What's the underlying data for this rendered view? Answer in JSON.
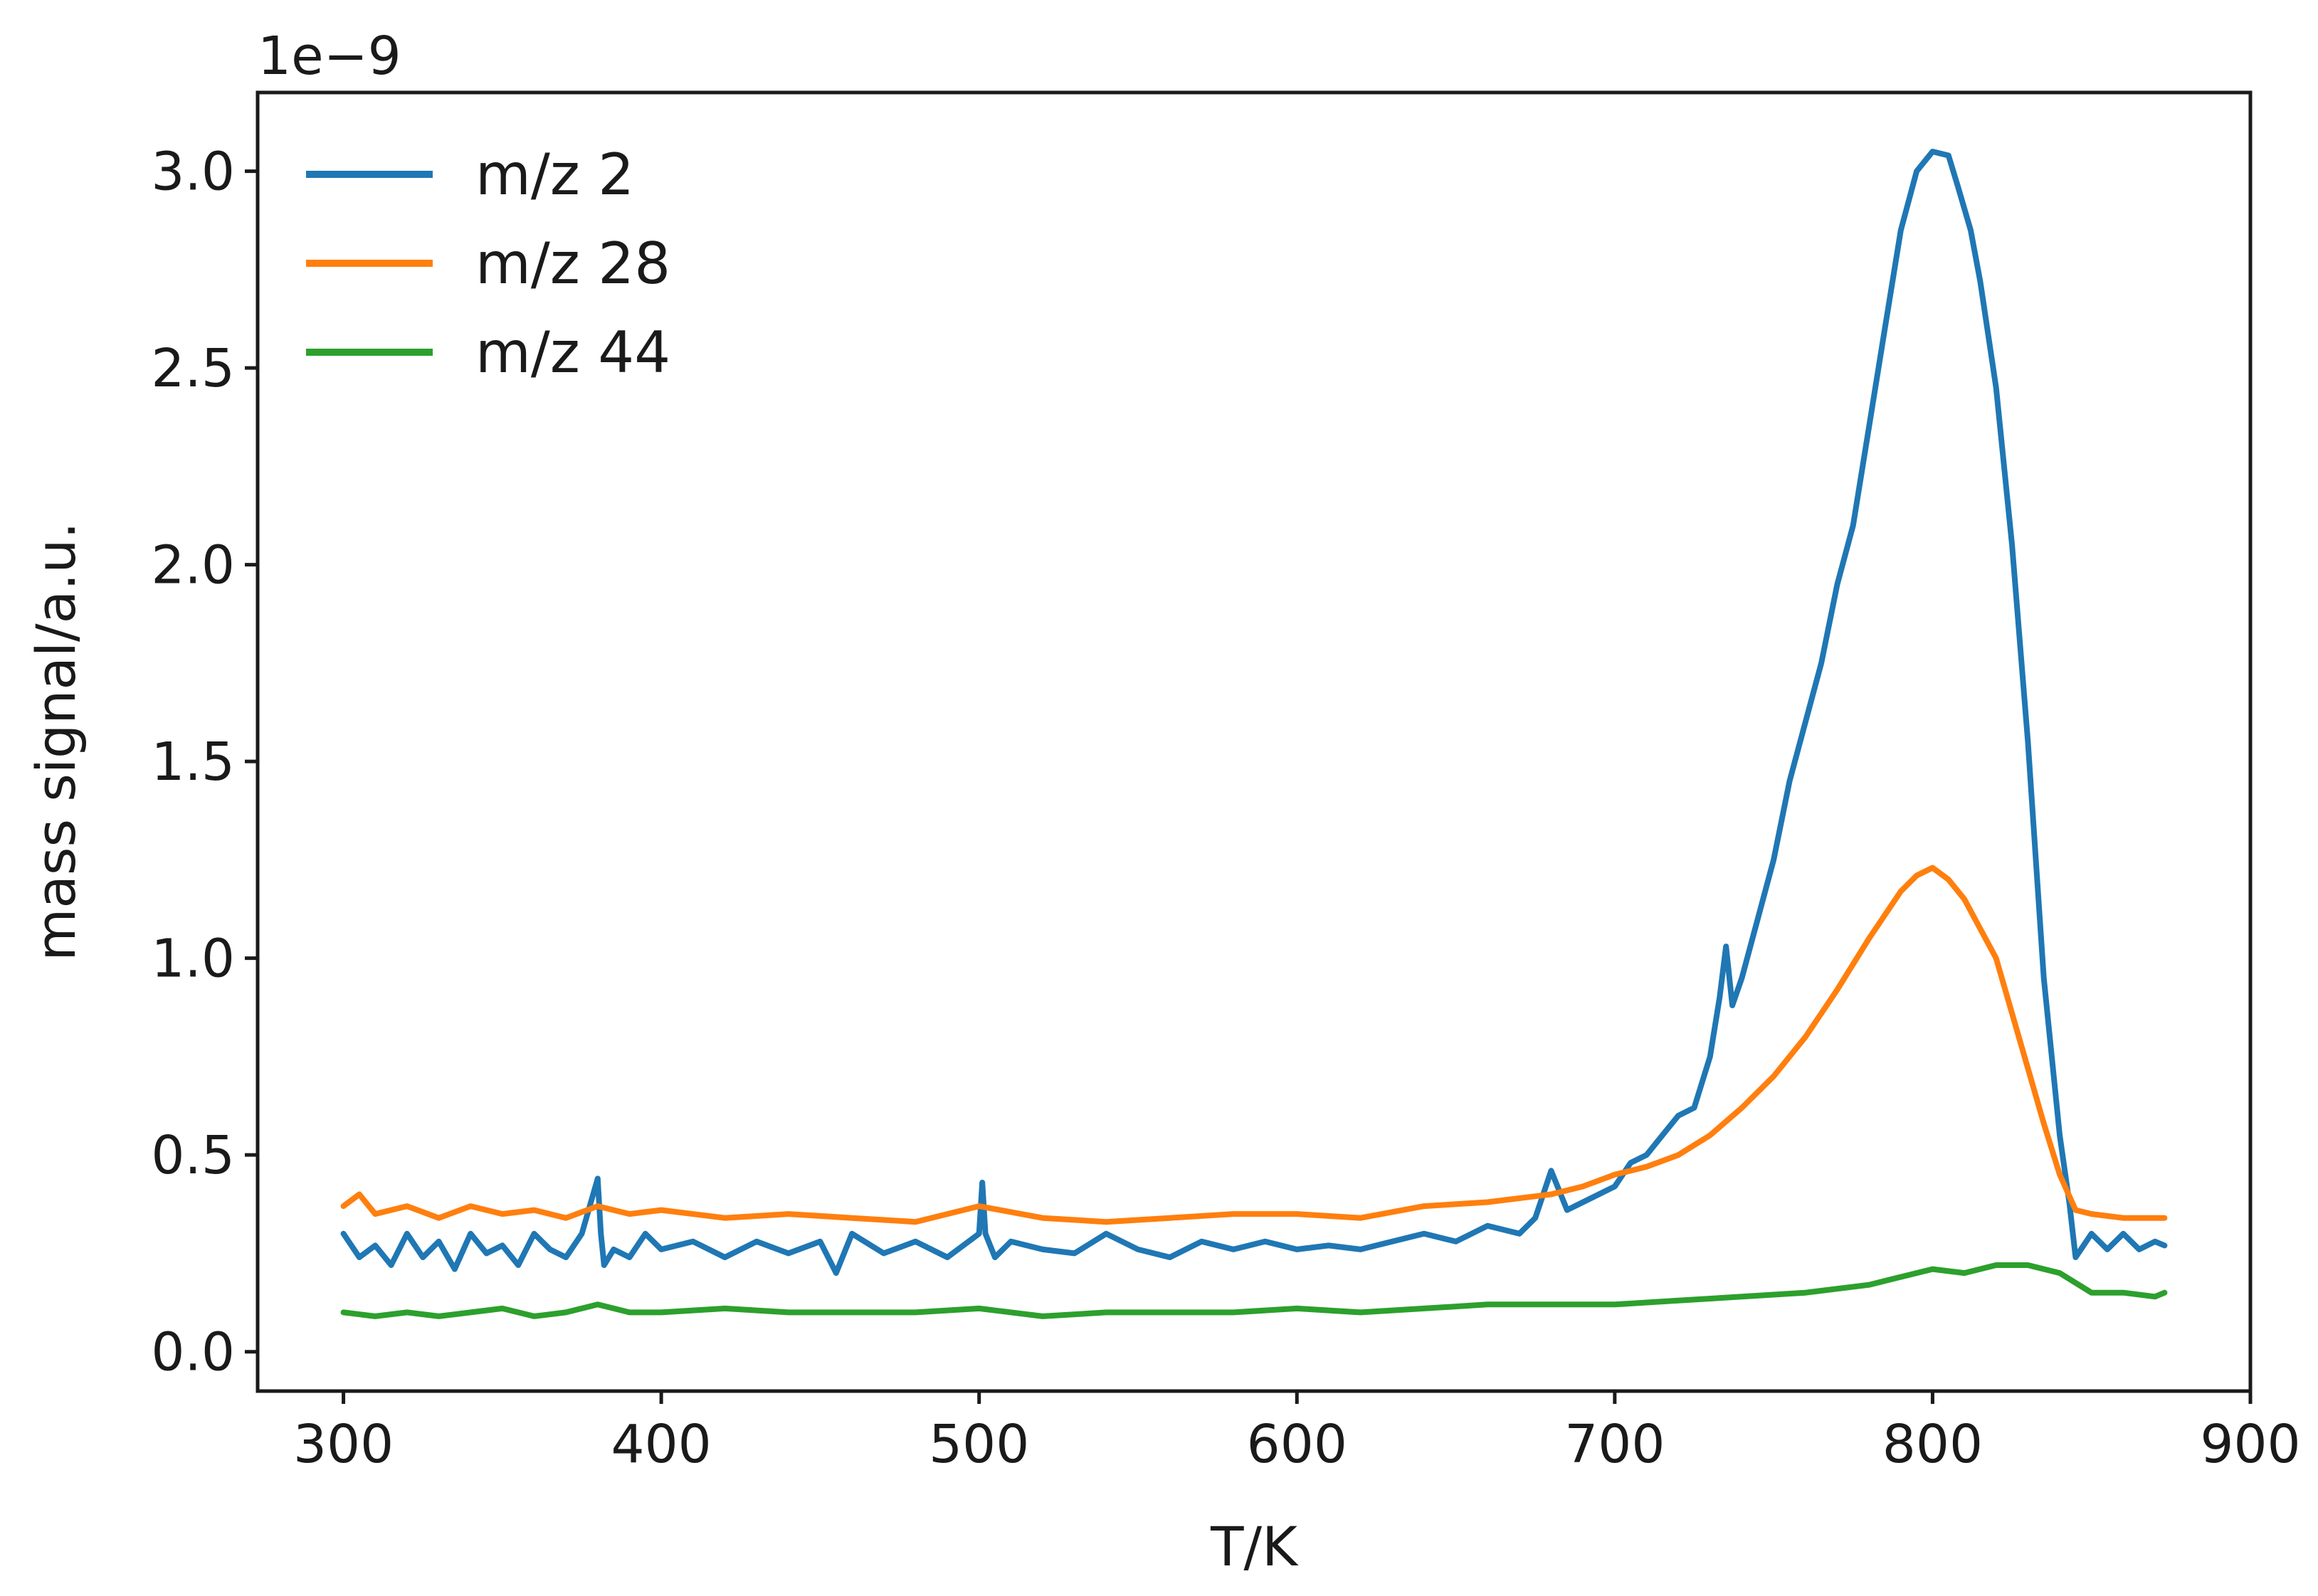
{
  "chart_data": {
    "type": "line",
    "title": "",
    "xlabel": "T/K",
    "ylabel": "mass signal/a.u.",
    "y_offset_label": "1e−9",
    "xlim": [
      273,
      900
    ],
    "ylim": [
      -0.1,
      3.2
    ],
    "xticks": [
      300,
      400,
      500,
      600,
      700,
      800,
      900
    ],
    "xtick_labels": [
      "300",
      "400",
      "500",
      "600",
      "700",
      "800",
      "900"
    ],
    "yticks": [
      0.0,
      0.5,
      1.0,
      1.5,
      2.0,
      2.5,
      3.0
    ],
    "ytick_labels": [
      "0.0",
      "0.5",
      "1.0",
      "1.5",
      "2.0",
      "2.5",
      "3.0"
    ],
    "grid": false,
    "legend_position": "upper-left",
    "series": [
      {
        "name": "m/z 2",
        "color": "#1f77b4",
        "x": [
          300,
          305,
          310,
          315,
          320,
          325,
          330,
          335,
          340,
          345,
          350,
          355,
          360,
          365,
          370,
          375,
          380,
          381,
          382,
          385,
          390,
          395,
          400,
          410,
          420,
          430,
          440,
          450,
          455,
          460,
          470,
          480,
          490,
          500,
          501,
          502,
          505,
          510,
          520,
          530,
          540,
          550,
          560,
          570,
          580,
          590,
          600,
          610,
          620,
          630,
          640,
          650,
          660,
          670,
          675,
          680,
          685,
          690,
          695,
          700,
          705,
          710,
          715,
          720,
          725,
          730,
          733,
          735,
          737,
          740,
          745,
          750,
          755,
          760,
          765,
          770,
          775,
          780,
          785,
          790,
          795,
          800,
          805,
          808,
          812,
          815,
          820,
          825,
          830,
          835,
          840,
          843,
          845,
          850,
          855,
          860,
          865,
          870,
          873
        ],
        "y": [
          0.3,
          0.24,
          0.27,
          0.22,
          0.3,
          0.24,
          0.28,
          0.21,
          0.3,
          0.25,
          0.27,
          0.22,
          0.3,
          0.26,
          0.24,
          0.3,
          0.44,
          0.3,
          0.22,
          0.26,
          0.24,
          0.3,
          0.26,
          0.28,
          0.24,
          0.28,
          0.25,
          0.28,
          0.2,
          0.3,
          0.25,
          0.28,
          0.24,
          0.3,
          0.43,
          0.3,
          0.24,
          0.28,
          0.26,
          0.25,
          0.3,
          0.26,
          0.24,
          0.28,
          0.26,
          0.28,
          0.26,
          0.27,
          0.26,
          0.28,
          0.3,
          0.28,
          0.32,
          0.3,
          0.34,
          0.46,
          0.36,
          0.38,
          0.4,
          0.42,
          0.48,
          0.5,
          0.55,
          0.6,
          0.62,
          0.75,
          0.9,
          1.03,
          0.88,
          0.95,
          1.1,
          1.25,
          1.45,
          1.6,
          1.75,
          1.95,
          2.1,
          2.35,
          2.6,
          2.85,
          3.0,
          3.05,
          3.04,
          2.96,
          2.85,
          2.72,
          2.45,
          2.05,
          1.55,
          0.95,
          0.55,
          0.38,
          0.24,
          0.3,
          0.26,
          0.3,
          0.26,
          0.28,
          0.27
        ]
      },
      {
        "name": "m/z 28",
        "color": "#ff7f0e",
        "x": [
          300,
          305,
          310,
          320,
          330,
          340,
          350,
          360,
          370,
          380,
          390,
          400,
          420,
          440,
          460,
          480,
          500,
          520,
          540,
          560,
          580,
          600,
          620,
          640,
          660,
          680,
          690,
          700,
          710,
          720,
          730,
          740,
          750,
          760,
          770,
          780,
          790,
          795,
          800,
          805,
          810,
          820,
          830,
          835,
          840,
          845,
          850,
          860,
          870,
          873
        ],
        "y": [
          0.37,
          0.4,
          0.35,
          0.37,
          0.34,
          0.37,
          0.35,
          0.36,
          0.34,
          0.37,
          0.35,
          0.36,
          0.34,
          0.35,
          0.34,
          0.33,
          0.37,
          0.34,
          0.33,
          0.34,
          0.35,
          0.35,
          0.34,
          0.37,
          0.38,
          0.4,
          0.42,
          0.45,
          0.47,
          0.5,
          0.55,
          0.62,
          0.7,
          0.8,
          0.92,
          1.05,
          1.17,
          1.21,
          1.23,
          1.2,
          1.15,
          1.0,
          0.72,
          0.58,
          0.45,
          0.36,
          0.35,
          0.34,
          0.34,
          0.34
        ]
      },
      {
        "name": "m/z 44",
        "color": "#2ca02c",
        "x": [
          300,
          310,
          320,
          330,
          340,
          350,
          360,
          370,
          380,
          390,
          400,
          420,
          440,
          460,
          480,
          500,
          520,
          540,
          560,
          580,
          600,
          620,
          640,
          660,
          680,
          700,
          720,
          740,
          760,
          780,
          790,
          800,
          810,
          820,
          830,
          840,
          850,
          860,
          870,
          873
        ],
        "y": [
          0.1,
          0.09,
          0.1,
          0.09,
          0.1,
          0.11,
          0.09,
          0.1,
          0.12,
          0.1,
          0.1,
          0.11,
          0.1,
          0.1,
          0.1,
          0.11,
          0.09,
          0.1,
          0.1,
          0.1,
          0.11,
          0.1,
          0.11,
          0.12,
          0.12,
          0.12,
          0.13,
          0.14,
          0.15,
          0.17,
          0.19,
          0.21,
          0.2,
          0.22,
          0.22,
          0.2,
          0.15,
          0.15,
          0.14,
          0.15
        ]
      }
    ]
  }
}
